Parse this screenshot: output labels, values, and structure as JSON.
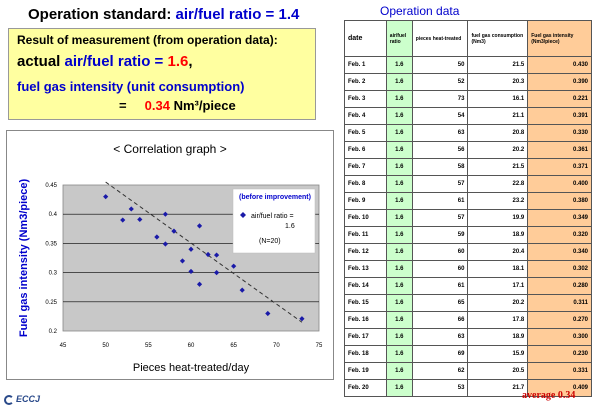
{
  "header": {
    "label": "Operation standard:",
    "value": "air/fuel ratio = 1.4"
  },
  "measurement": {
    "title": "Result of measurement (from operation data):",
    "actual_prefix": "actual ",
    "actual_label": "air/fuel ratio = ",
    "actual_value": "1.6",
    "actual_suffix": ",",
    "intensity_label": "fuel gas intensity (unit consumption)",
    "equals": "=",
    "intensity_value": "0.34",
    "intensity_unit": "Nm³/piece"
  },
  "table": {
    "title": "Operation data",
    "headers": [
      "date",
      "air/fuel ratio",
      "pieces heat-treated",
      "fuel gas consumption (Nm3)",
      "Fuel gas intensity (Nm3/piece)"
    ],
    "rows": [
      [
        "Feb. 1",
        "1.6",
        "50",
        "21.5",
        "0.430"
      ],
      [
        "Feb. 2",
        "1.6",
        "52",
        "20.3",
        "0.390"
      ],
      [
        "Feb. 3",
        "1.6",
        "73",
        "16.1",
        "0.221"
      ],
      [
        "Feb. 4",
        "1.6",
        "54",
        "21.1",
        "0.391"
      ],
      [
        "Feb. 5",
        "1.6",
        "63",
        "20.8",
        "0.330"
      ],
      [
        "Feb. 6",
        "1.6",
        "56",
        "20.2",
        "0.361"
      ],
      [
        "Feb. 7",
        "1.6",
        "58",
        "21.5",
        "0.371"
      ],
      [
        "Feb. 8",
        "1.6",
        "57",
        "22.8",
        "0.400"
      ],
      [
        "Feb. 9",
        "1.6",
        "61",
        "23.2",
        "0.380"
      ],
      [
        "Feb. 10",
        "1.6",
        "57",
        "19.9",
        "0.349"
      ],
      [
        "Feb. 11",
        "1.6",
        "59",
        "18.9",
        "0.320"
      ],
      [
        "Feb. 12",
        "1.6",
        "60",
        "20.4",
        "0.340"
      ],
      [
        "Feb. 13",
        "1.6",
        "60",
        "18.1",
        "0.302"
      ],
      [
        "Feb. 14",
        "1.6",
        "61",
        "17.1",
        "0.280"
      ],
      [
        "Feb. 15",
        "1.6",
        "65",
        "20.2",
        "0.311"
      ],
      [
        "Feb. 16",
        "1.6",
        "66",
        "17.8",
        "0.270"
      ],
      [
        "Feb. 17",
        "1.6",
        "63",
        "18.9",
        "0.300"
      ],
      [
        "Feb. 18",
        "1.6",
        "69",
        "15.9",
        "0.230"
      ],
      [
        "Feb. 19",
        "1.6",
        "62",
        "20.5",
        "0.331"
      ],
      [
        "Feb. 20",
        "1.6",
        "53",
        "21.7",
        "0.409"
      ]
    ],
    "average": "average  0.34"
  },
  "logo": {
    "text": "ECCJ"
  },
  "chart_data": {
    "type": "scatter",
    "title": "< Correlation graph >",
    "xlabel": "Pieces heat-treated/day",
    "ylabel": "Fuel gas intensity (Nm3/piece)",
    "xlim": [
      45,
      75
    ],
    "ylim": [
      0.2,
      0.45
    ],
    "xticks": [
      "45",
      "50",
      "55",
      "60",
      "65",
      "70",
      "75"
    ],
    "yticks": [
      "0.2",
      "0.25",
      "0.3",
      "0.35",
      "0.4",
      "0.45"
    ],
    "grid": true,
    "legend": {
      "position": "top-right",
      "title": "(before improvement)",
      "entry": "air/fuel ratio = 1.6",
      "count": "(N=20)"
    },
    "series": [
      {
        "marker_color": "#1a1aa8",
        "x": [
          50,
          52,
          73,
          54,
          63,
          56,
          58,
          57,
          61,
          57,
          59,
          60,
          60,
          61,
          65,
          66,
          63,
          69,
          62,
          53
        ],
        "y": [
          0.43,
          0.39,
          0.221,
          0.391,
          0.33,
          0.361,
          0.371,
          0.4,
          0.38,
          0.349,
          0.32,
          0.34,
          0.302,
          0.28,
          0.311,
          0.27,
          0.3,
          0.23,
          0.331,
          0.409
        ]
      }
    ],
    "trendline": {
      "x": [
        50,
        73
      ],
      "y": [
        0.455,
        0.215
      ]
    }
  }
}
